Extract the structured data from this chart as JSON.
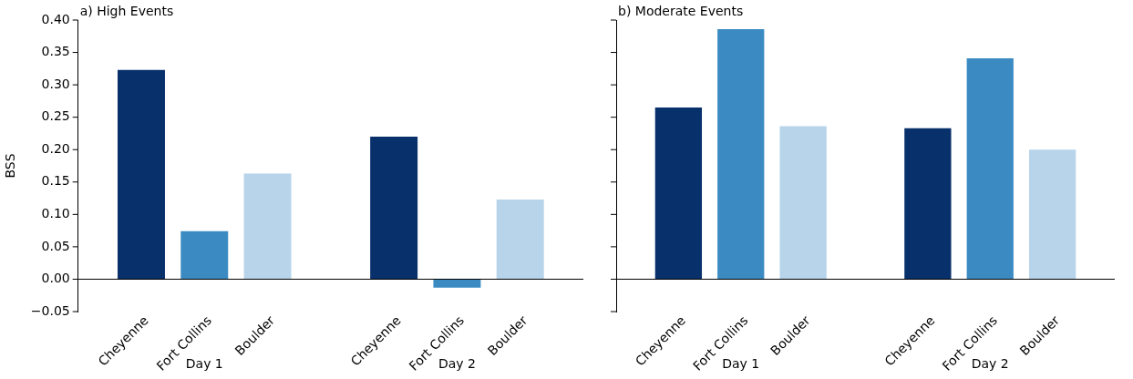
{
  "chart_data": [
    {
      "type": "bar",
      "title": "a) High Events",
      "ylabel": "BSS",
      "categories": [
        "Day 1",
        "Day 2"
      ],
      "series": [
        {
          "name": "Cheyenne",
          "color": "#08306b",
          "values": [
            0.323,
            0.22
          ]
        },
        {
          "name": "Fort Collins",
          "color": "#3b8bc2",
          "values": [
            0.074,
            -0.013
          ]
        },
        {
          "name": "Boulder",
          "color": "#b7d4ea",
          "values": [
            0.163,
            0.123
          ]
        }
      ],
      "ylim": [
        -0.05,
        0.4
      ],
      "yticks": [
        {
          "value": -0.05,
          "label": "−0.05"
        },
        {
          "value": 0,
          "label": "0.00"
        },
        {
          "value": 0.05,
          "label": "0.05"
        },
        {
          "value": 0.1,
          "label": "0.10"
        },
        {
          "value": 0.15,
          "label": "0.15"
        },
        {
          "value": 0.2,
          "label": "0.20"
        },
        {
          "value": 0.25,
          "label": "0.25"
        },
        {
          "value": 0.3,
          "label": "0.30"
        },
        {
          "value": 0.35,
          "label": "0.35"
        },
        {
          "value": 0.4,
          "label": "0.40"
        }
      ],
      "ref_lines": [
        {
          "axis": "y",
          "value": 0,
          "color": "#000000"
        }
      ],
      "grid": false,
      "legend": false
    },
    {
      "type": "bar",
      "title": "b) Moderate Events",
      "categories": [
        "Day 1",
        "Day 2"
      ],
      "series": [
        {
          "name": "Cheyenne",
          "color": "#08306b",
          "values": [
            0.265,
            0.233
          ]
        },
        {
          "name": "Fort Collins",
          "color": "#3b8bc2",
          "values": [
            0.386,
            0.341
          ]
        },
        {
          "name": "Boulder",
          "color": "#b7d4ea",
          "values": [
            0.236,
            0.2
          ]
        }
      ],
      "ylim": [
        -0.05,
        0.4
      ],
      "yticks": [
        {
          "value": -0.05,
          "label": null
        },
        {
          "value": 0,
          "label": null
        },
        {
          "value": 0.05,
          "label": null
        },
        {
          "value": 0.1,
          "label": null
        },
        {
          "value": 0.15,
          "label": null
        },
        {
          "value": 0.2,
          "label": null
        },
        {
          "value": 0.25,
          "label": null
        },
        {
          "value": 0.3,
          "label": null
        },
        {
          "value": 0.35,
          "label": null
        },
        {
          "value": 0.4,
          "label": null
        }
      ],
      "tick_labels": "x",
      "ref_lines": [
        {
          "axis": "y",
          "value": 0,
          "color": "#000000"
        }
      ],
      "grid": false,
      "legend": false
    }
  ]
}
